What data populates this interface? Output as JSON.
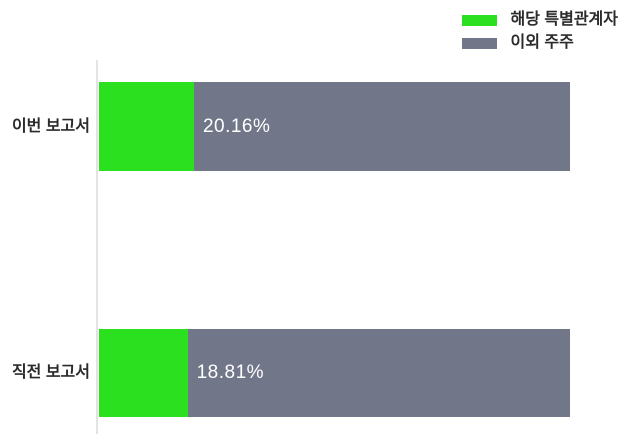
{
  "chart_data": {
    "type": "bar",
    "orientation": "horizontal",
    "stacked": true,
    "unit": "%",
    "categories": [
      "이번 보고서",
      "직전 보고서"
    ],
    "series": [
      {
        "name": "해당 특별관계자",
        "color": "#2be01e",
        "values": [
          20.16,
          18.81
        ]
      },
      {
        "name": "이외 주주",
        "color": "#717689",
        "values": [
          79.84,
          81.19
        ]
      }
    ],
    "value_labels": [
      "20.16%",
      "18.81%"
    ],
    "xlim": [
      0,
      100
    ],
    "legend_position": "top-right",
    "grid": false,
    "axis_color": "#e3e3e3",
    "category_label_color": "#2b2b2b",
    "value_label_color": "#ffffff",
    "background": "#ffffff"
  }
}
